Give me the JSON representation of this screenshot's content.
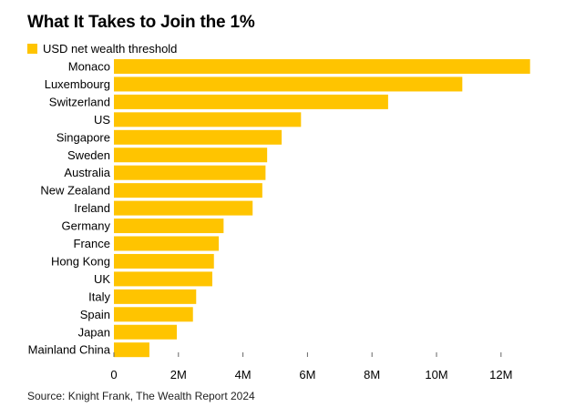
{
  "chart_data": {
    "type": "bar",
    "orientation": "horizontal",
    "title": "What It Takes to Join the 1%",
    "legend": {
      "label": "USD net wealth threshold",
      "placement": "top-left"
    },
    "categories": [
      "Monaco",
      "Luxembourg",
      "Switzerland",
      "US",
      "Singapore",
      "Sweden",
      "Australia",
      "New Zealand",
      "Ireland",
      "Germany",
      "France",
      "Hong Kong",
      "UK",
      "Italy",
      "Spain",
      "Japan",
      "Mainland China"
    ],
    "series": [
      {
        "name": "USD net wealth threshold",
        "values": [
          12.9,
          10.8,
          8.5,
          5.8,
          5.2,
          4.75,
          4.7,
          4.6,
          4.3,
          3.4,
          3.25,
          3.1,
          3.05,
          2.55,
          2.45,
          1.95,
          1.1
        ]
      }
    ],
    "xlim": [
      0,
      13
    ],
    "xticks": [
      0,
      2,
      4,
      6,
      8,
      10,
      12
    ],
    "xtick_labels": [
      "0",
      "2M",
      "4M",
      "6M",
      "8M",
      "10M",
      "12M"
    ],
    "unit": "USD millions",
    "grid": false,
    "color": "#FFC400",
    "source": "Source: Knight Frank, The Wealth Report 2024"
  }
}
